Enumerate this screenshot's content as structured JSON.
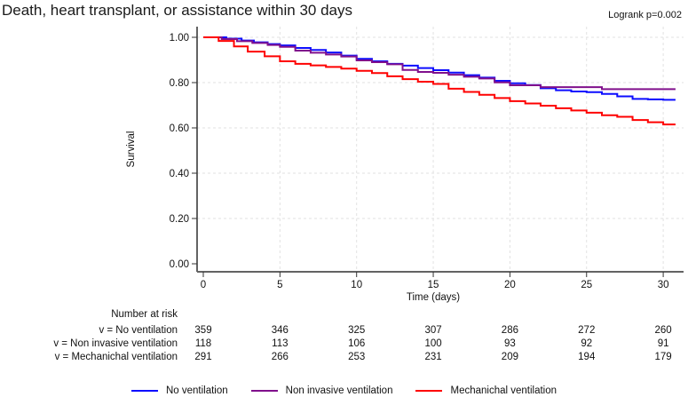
{
  "title": "Death, heart transplant, or assistance within 30 days",
  "annotation": "Logrank p=0.002",
  "chart_data": {
    "type": "line",
    "subtype": "kaplan-meier-step",
    "title": "Death, heart transplant, or assistance within 30 days",
    "xlabel": "Time (days)",
    "ylabel": "Survival",
    "xlim": [
      0,
      31
    ],
    "ylim": [
      0.0,
      1.0
    ],
    "xticks": [
      0,
      5,
      10,
      15,
      20,
      25,
      30
    ],
    "ytick_labels": [
      "0.00",
      "0.20",
      "0.40",
      "0.60",
      "0.80",
      "1.00"
    ],
    "yticks": [
      0.0,
      0.2,
      0.4,
      0.6,
      0.8,
      1.0
    ],
    "grid": true,
    "gridline_style": "dashed",
    "legend_position": "bottom",
    "annotation": "Logrank p=0.002",
    "colors": {
      "grid": "#e2e2e2",
      "axis": "#636363",
      "tick": "#333333",
      "text": "#111111"
    },
    "series": [
      {
        "name": "No ventilation",
        "color": "#0d0dff",
        "steps": [
          [
            0,
            1.0
          ],
          [
            1.5,
            0.994
          ],
          [
            2.5,
            0.986
          ],
          [
            3.3,
            0.978
          ],
          [
            4.2,
            0.97
          ],
          [
            5,
            0.964
          ],
          [
            6,
            0.953
          ],
          [
            7,
            0.944
          ],
          [
            8,
            0.933
          ],
          [
            9,
            0.919
          ],
          [
            10,
            0.905
          ],
          [
            11,
            0.894
          ],
          [
            12,
            0.883
          ],
          [
            13,
            0.875
          ],
          [
            14,
            0.864
          ],
          [
            15,
            0.855
          ],
          [
            16,
            0.844
          ],
          [
            17,
            0.833
          ],
          [
            18,
            0.822
          ],
          [
            19,
            0.808
          ],
          [
            20,
            0.797
          ],
          [
            21,
            0.789
          ],
          [
            22,
            0.775
          ],
          [
            23,
            0.766
          ],
          [
            24,
            0.761
          ],
          [
            25,
            0.758
          ],
          [
            26,
            0.75
          ],
          [
            27,
            0.739
          ],
          [
            28,
            0.728
          ],
          [
            29,
            0.726
          ],
          [
            30,
            0.724
          ],
          [
            30.8,
            0.724
          ]
        ]
      },
      {
        "name": "Non invasive ventilation",
        "color": "#80108c",
        "steps": [
          [
            0,
            1.0
          ],
          [
            1.2,
            0.992
          ],
          [
            2.2,
            0.983
          ],
          [
            3.2,
            0.975
          ],
          [
            4.2,
            0.966
          ],
          [
            5,
            0.958
          ],
          [
            6,
            0.941
          ],
          [
            7,
            0.932
          ],
          [
            8,
            0.924
          ],
          [
            9,
            0.915
          ],
          [
            10,
            0.898
          ],
          [
            11,
            0.89
          ],
          [
            12,
            0.881
          ],
          [
            13,
            0.856
          ],
          [
            14,
            0.847
          ],
          [
            15,
            0.843
          ],
          [
            16,
            0.835
          ],
          [
            17,
            0.826
          ],
          [
            18,
            0.818
          ],
          [
            19,
            0.801
          ],
          [
            20,
            0.788
          ],
          [
            22,
            0.78
          ],
          [
            26,
            0.771
          ],
          [
            30.8,
            0.771
          ]
        ]
      },
      {
        "name": "Mechanichal ventilation",
        "color": "#fe0000",
        "steps": [
          [
            0,
            1.0
          ],
          [
            1,
            0.984
          ],
          [
            2,
            0.96
          ],
          [
            2.9,
            0.937
          ],
          [
            4,
            0.916
          ],
          [
            5,
            0.894
          ],
          [
            6,
            0.883
          ],
          [
            7,
            0.876
          ],
          [
            8,
            0.869
          ],
          [
            9,
            0.862
          ],
          [
            10,
            0.852
          ],
          [
            11,
            0.842
          ],
          [
            12,
            0.828
          ],
          [
            13,
            0.815
          ],
          [
            14,
            0.804
          ],
          [
            15,
            0.794
          ],
          [
            16,
            0.773
          ],
          [
            17,
            0.759
          ],
          [
            18,
            0.746
          ],
          [
            19,
            0.732
          ],
          [
            20,
            0.718
          ],
          [
            21,
            0.708
          ],
          [
            22,
            0.698
          ],
          [
            23,
            0.687
          ],
          [
            24,
            0.677
          ],
          [
            25,
            0.667
          ],
          [
            26,
            0.656
          ],
          [
            27,
            0.649
          ],
          [
            28,
            0.635
          ],
          [
            29,
            0.625
          ],
          [
            30,
            0.615
          ],
          [
            30.8,
            0.615
          ]
        ]
      }
    ]
  },
  "at_risk": {
    "header": "Number at risk",
    "count_days": [
      0,
      5,
      10,
      15,
      20,
      25,
      30
    ],
    "rows": [
      {
        "label": "v = No ventilation",
        "counts": [
          359,
          346,
          325,
          307,
          286,
          272,
          260
        ]
      },
      {
        "label": "v = Non invasive ventilation",
        "counts": [
          118,
          113,
          106,
          100,
          93,
          92,
          91
        ]
      },
      {
        "label": "v = Mechanichal ventilation",
        "counts": [
          291,
          266,
          253,
          231,
          209,
          194,
          179
        ]
      }
    ]
  },
  "legend": [
    {
      "label": "No ventilation",
      "color": "#0d0dff"
    },
    {
      "label": "Non invasive ventilation",
      "color": "#80108c"
    },
    {
      "label": "Mechanichal ventilation",
      "color": "#fe0000"
    }
  ]
}
